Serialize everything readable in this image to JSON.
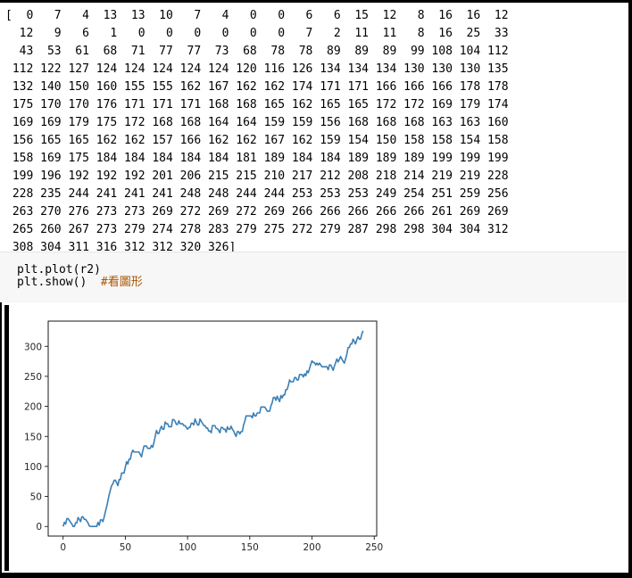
{
  "output": {
    "lines": [
      "[  0   7   4  13  13  10   7   4   0   0   6   6  15  12   8  16  16  12",
      "  12   9   6   1   0   0   0   0   0   0   7   2  11  11   8  16  25  33",
      "  43  53  61  68  71  77  77  73  68  78  78  89  89  89  99 108 104 112",
      " 112 122 127 124 124 124 124 124 120 116 126 134 134 134 130 130 130 135",
      " 132 140 150 160 155 155 162 167 162 162 174 171 171 166 166 166 178 178",
      " 175 170 170 176 171 171 171 168 168 165 162 165 165 172 172 169 179 174",
      " 169 169 179 175 172 168 168 164 164 159 159 156 168 168 168 163 163 160",
      " 156 165 165 162 162 157 166 162 162 167 162 159 154 150 158 158 154 158",
      " 158 169 175 184 184 184 184 184 181 189 184 184 189 189 189 199 199 199",
      " 199 196 192 192 192 201 206 215 215 210 217 212 208 218 214 219 219 228",
      " 228 235 244 241 241 241 248 248 244 244 253 253 253 249 254 251 259 256",
      " 263 270 276 273 273 269 272 269 272 269 266 266 266 266 266 261 269 269",
      " 265 260 267 273 279 274 278 283 279 275 272 279 287 298 298 304 304 312",
      " 308 304 311 316 312 312 320 326]"
    ]
  },
  "code": {
    "line1": "plt.plot(r2)",
    "line2_code": "plt.show()  ",
    "line2_comment": "#看圖形"
  },
  "chart_data": {
    "type": "line",
    "title": "",
    "xlabel": "",
    "ylabel": "",
    "xlim": [
      -12,
      252
    ],
    "ylim": [
      -16,
      342
    ],
    "xticks": [
      0,
      50,
      100,
      150,
      200,
      250
    ],
    "yticks": [
      0,
      50,
      100,
      150,
      200,
      250,
      300
    ],
    "grid": false,
    "line_color": "#3a7fb5",
    "series": [
      {
        "values": [
          0,
          7,
          4,
          13,
          13,
          10,
          7,
          4,
          0,
          0,
          6,
          6,
          15,
          12,
          8,
          16,
          16,
          12,
          12,
          9,
          6,
          1,
          0,
          0,
          0,
          0,
          0,
          0,
          7,
          2,
          11,
          11,
          8,
          16,
          25,
          33,
          43,
          53,
          61,
          68,
          71,
          77,
          77,
          73,
          68,
          78,
          78,
          89,
          89,
          89,
          99,
          108,
          104,
          112,
          112,
          122,
          127,
          124,
          124,
          124,
          124,
          124,
          120,
          116,
          126,
          134,
          134,
          134,
          130,
          130,
          130,
          135,
          132,
          140,
          150,
          160,
          155,
          155,
          162,
          167,
          162,
          162,
          174,
          171,
          171,
          166,
          166,
          166,
          178,
          178,
          175,
          170,
          170,
          176,
          171,
          171,
          171,
          168,
          168,
          165,
          162,
          165,
          165,
          172,
          172,
          169,
          179,
          174,
          169,
          169,
          179,
          175,
          172,
          168,
          168,
          164,
          164,
          159,
          159,
          156,
          168,
          168,
          168,
          163,
          163,
          160,
          156,
          165,
          165,
          162,
          162,
          157,
          166,
          162,
          162,
          167,
          162,
          159,
          154,
          150,
          158,
          158,
          154,
          158,
          158,
          169,
          175,
          184,
          184,
          184,
          184,
          184,
          181,
          189,
          184,
          184,
          189,
          189,
          189,
          199,
          199,
          199,
          199,
          196,
          192,
          192,
          192,
          201,
          206,
          215,
          215,
          210,
          217,
          212,
          208,
          218,
          214,
          219,
          219,
          228,
          228,
          235,
          244,
          241,
          241,
          241,
          248,
          248,
          244,
          244,
          253,
          253,
          253,
          249,
          254,
          251,
          259,
          256,
          263,
          270,
          276,
          273,
          273,
          269,
          272,
          269,
          272,
          269,
          266,
          266,
          266,
          266,
          266,
          261,
          269,
          269,
          265,
          260,
          267,
          273,
          279,
          274,
          278,
          283,
          279,
          275,
          272,
          279,
          287,
          298,
          298,
          304,
          304,
          312,
          308,
          304,
          311,
          316,
          312,
          312,
          320,
          326
        ]
      }
    ]
  }
}
